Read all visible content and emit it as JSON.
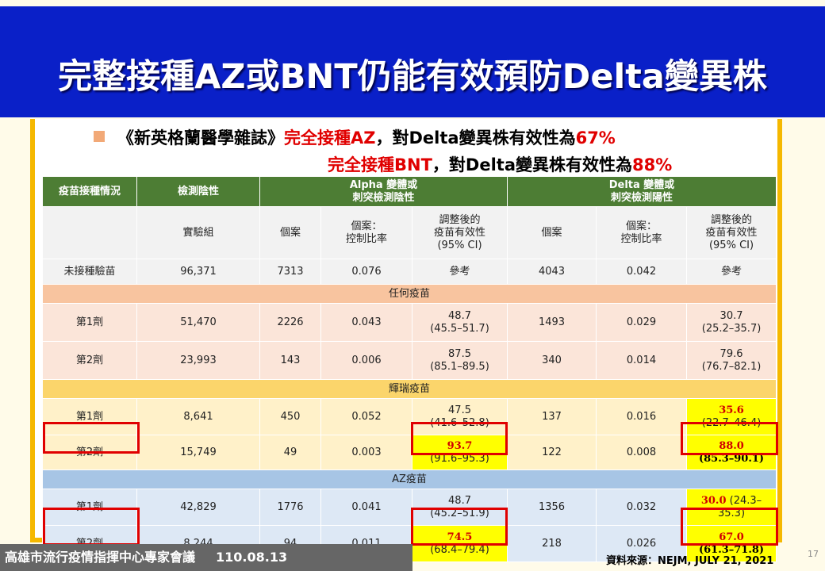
{
  "slide": {
    "title": "完整接種AZ或BNT仍能有效預防Delta變異株",
    "subtitle_1_black": "《新英格蘭醫學雜誌》",
    "subtitle_1_red_a": "完全接種AZ",
    "subtitle_1_black_b": "，對Delta變異株有效性為",
    "subtitle_1_red_b": "67%",
    "subtitle_2_red_a": "完全接種BNT",
    "subtitle_2_black_b": "，對Delta變異株有效性為",
    "subtitle_2_red_b": "88%"
  },
  "table": {
    "headers": {
      "col1": "疫苗接種情況",
      "col2": "檢測陰性",
      "alpha": "Alpha 變體或\n刺突檢測陰性",
      "delta": "Delta 變體或\n刺突檢測陽性"
    },
    "subheaders": {
      "control": "實驗組",
      "cases": "個案",
      "ratio": "個案：\n控制比率",
      "ve": "調整後的\n疫苗有效性\n(95% CI)"
    },
    "baseline": {
      "label": "未接種驗苗",
      "neg": "96,371",
      "a_cases": "7313",
      "a_ratio": "0.076",
      "a_ve": "參考",
      "d_cases": "4043",
      "d_ratio": "0.042",
      "d_ve": "參考"
    },
    "sections": {
      "any": "任何疫苗",
      "pfizer": "輝瑞疫苗",
      "az": "AZ疫苗"
    },
    "rows": {
      "any1": {
        "label": "第1劑",
        "neg": "51,470",
        "a_cases": "2226",
        "a_ratio": "0.043",
        "a_ve": "48.7",
        "a_ci": "(45.5–51.7)",
        "d_cases": "1493",
        "d_ratio": "0.029",
        "d_ve": "30.7",
        "d_ci": "(25.2–35.7)"
      },
      "any2": {
        "label": "第2劑",
        "neg": "23,993",
        "a_cases": "143",
        "a_ratio": "0.006",
        "a_ve": "87.5",
        "a_ci": "(85.1–89.5)",
        "d_cases": "340",
        "d_ratio": "0.014",
        "d_ve": "79.6",
        "d_ci": "(76.7–82.1)"
      },
      "pf1": {
        "label": "第1劑",
        "neg": "8,641",
        "a_cases": "450",
        "a_ratio": "0.052",
        "a_ve": "47.5",
        "a_ci": "(41.6–52.8)",
        "d_cases": "137",
        "d_ratio": "0.016",
        "d_ve": "35.6",
        "d_ci": "(22.7–46.4)"
      },
      "pf2": {
        "label": "第2劑",
        "neg": "15,749",
        "a_cases": "49",
        "a_ratio": "0.003",
        "a_ve": "93.7",
        "a_ci": "(91.6–95.3)",
        "d_cases": "122",
        "d_ratio": "0.008",
        "d_ve": "88.0",
        "d_ci": "(85.3–90.1)"
      },
      "az1": {
        "label": "第1劑",
        "neg": "42,829",
        "a_cases": "1776",
        "a_ratio": "0.041",
        "a_ve": "48.7",
        "a_ci": "(45.2–51.9)",
        "d_cases": "1356",
        "d_ratio": "0.032",
        "d_ve": "30.0",
        "d_ci": "(24.3–\n35.3)"
      },
      "az2": {
        "label": "第2劑",
        "neg": "8,244",
        "a_cases": "94",
        "a_ratio": "0.011",
        "a_ve": "74.5",
        "a_ci": "(68.4–79.4)",
        "d_cases": "218",
        "d_ratio": "0.026",
        "d_ve": "67.0",
        "d_ci": "(61.3–71.8)"
      }
    }
  },
  "footer": {
    "org": "高雄市流行疫情指揮中心專家會議",
    "date": "110.08.13",
    "source": "資料來源：NEJM, JULY 21, 2021",
    "page": "17"
  },
  "colors": {
    "title_bg": "#0a20c8",
    "header_green": "#4d7d34",
    "highlight_red": "#e00000",
    "frame_gold": "#f5b800"
  }
}
